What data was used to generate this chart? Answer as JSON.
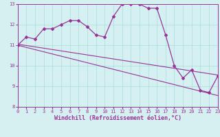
{
  "x": [
    0,
    1,
    2,
    3,
    4,
    5,
    6,
    7,
    8,
    9,
    10,
    11,
    12,
    13,
    14,
    15,
    16,
    17,
    18,
    19,
    20,
    21,
    22,
    23
  ],
  "windchill": [
    11.0,
    11.4,
    11.3,
    11.8,
    11.8,
    12.0,
    12.2,
    12.2,
    11.9,
    11.5,
    11.4,
    12.4,
    13.0,
    13.0,
    13.0,
    12.8,
    12.8,
    11.5,
    10.0,
    9.4,
    9.8,
    8.8,
    8.7,
    9.5
  ],
  "trend1_start": 11.05,
  "trend1_end": 9.55,
  "trend2_start": 11.0,
  "trend2_end": 8.55,
  "ylim": [
    8,
    13
  ],
  "xlim": [
    0,
    23
  ],
  "yticks": [
    8,
    9,
    10,
    11,
    12,
    13
  ],
  "xticks": [
    0,
    1,
    2,
    3,
    4,
    5,
    6,
    7,
    8,
    9,
    10,
    11,
    12,
    13,
    14,
    15,
    16,
    17,
    18,
    19,
    20,
    21,
    22,
    23
  ],
  "xlabel": "Windchill (Refroidissement éolien,°C)",
  "line_color": "#993399",
  "bg_color": "#d4f0f0",
  "grid_color": "#aadddd",
  "marker": "D",
  "markersize": 2.0,
  "linewidth": 0.9,
  "tick_fontsize": 5.0,
  "xlabel_fontsize": 6.0,
  "xlabel_fontweight": "bold"
}
